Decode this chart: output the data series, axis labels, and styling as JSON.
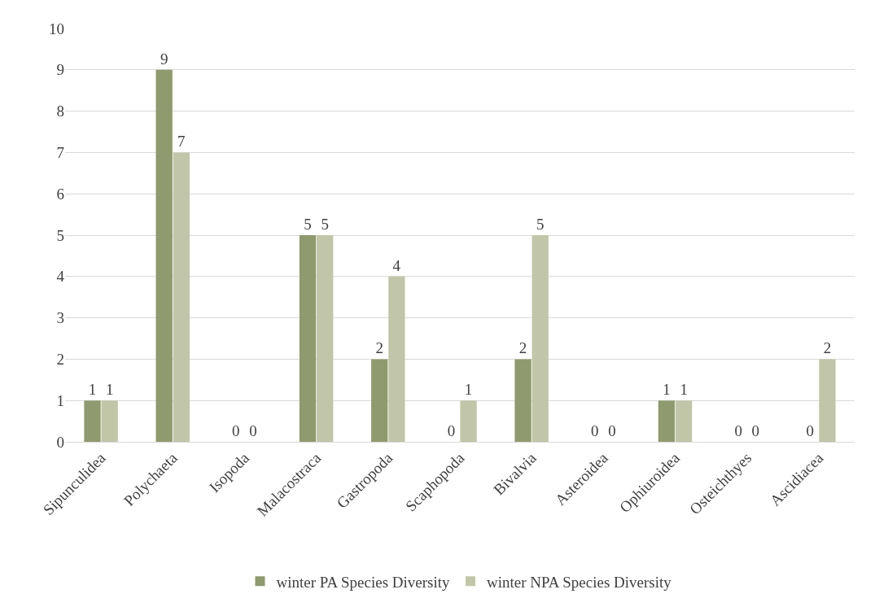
{
  "chart_data": {
    "type": "bar",
    "categories": [
      "Sipunculidea",
      "Polychaeta",
      "Isopoda",
      "Malacostraca",
      "Gastropoda",
      "Scaphopoda",
      "Bivalvia",
      "Asteroidea",
      "Ophiuroidea",
      "Osteichthyes",
      "Ascidiacea"
    ],
    "series": [
      {
        "name": "winter PA Species Diversity",
        "color": "#8f9a6e",
        "values": [
          1,
          9,
          0,
          5,
          2,
          0,
          2,
          0,
          1,
          0,
          0
        ]
      },
      {
        "name": "winter NPA Species Diversity",
        "color": "#c1c6a8",
        "values": [
          1,
          7,
          0,
          5,
          4,
          1,
          5,
          0,
          1,
          0,
          2
        ]
      }
    ],
    "ylim": [
      0,
      10
    ],
    "yticks": [
      0,
      1,
      2,
      3,
      4,
      5,
      6,
      7,
      8,
      9,
      10
    ],
    "grid": "y",
    "legend": "bottom",
    "data_labels": true
  }
}
